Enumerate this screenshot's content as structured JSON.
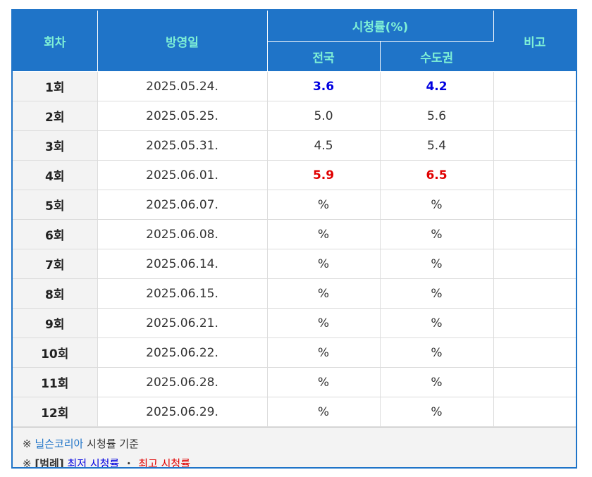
{
  "header": {
    "episode": "회차",
    "air_date": "방영일",
    "rating_group": "시청률(%)",
    "nationwide": "전국",
    "capital": "수도권",
    "note": "비고"
  },
  "rows": [
    {
      "episode": "1회",
      "date": "2025.05.24.",
      "nationwide": "3.6",
      "capital": "4.2",
      "nation_style": "low",
      "capital_style": "low",
      "note": ""
    },
    {
      "episode": "2회",
      "date": "2025.05.25.",
      "nationwide": "5.0",
      "capital": "5.6",
      "nation_style": "",
      "capital_style": "",
      "note": ""
    },
    {
      "episode": "3회",
      "date": "2025.05.31.",
      "nationwide": "4.5",
      "capital": "5.4",
      "nation_style": "",
      "capital_style": "",
      "note": ""
    },
    {
      "episode": "4회",
      "date": "2025.06.01.",
      "nationwide": "5.9",
      "capital": "6.5",
      "nation_style": "high",
      "capital_style": "high",
      "note": ""
    },
    {
      "episode": "5회",
      "date": "2025.06.07.",
      "nationwide": "%",
      "capital": "%",
      "nation_style": "",
      "capital_style": "",
      "note": ""
    },
    {
      "episode": "6회",
      "date": "2025.06.08.",
      "nationwide": "%",
      "capital": "%",
      "nation_style": "",
      "capital_style": "",
      "note": ""
    },
    {
      "episode": "7회",
      "date": "2025.06.14.",
      "nationwide": "%",
      "capital": "%",
      "nation_style": "",
      "capital_style": "",
      "note": ""
    },
    {
      "episode": "8회",
      "date": "2025.06.15.",
      "nationwide": "%",
      "capital": "%",
      "nation_style": "",
      "capital_style": "",
      "note": ""
    },
    {
      "episode": "9회",
      "date": "2025.06.21.",
      "nationwide": "%",
      "capital": "%",
      "nation_style": "",
      "capital_style": "",
      "note": ""
    },
    {
      "episode": "10회",
      "date": "2025.06.22.",
      "nationwide": "%",
      "capital": "%",
      "nation_style": "",
      "capital_style": "",
      "note": ""
    },
    {
      "episode": "11회",
      "date": "2025.06.28.",
      "nationwide": "%",
      "capital": "%",
      "nation_style": "",
      "capital_style": "",
      "note": ""
    },
    {
      "episode": "12회",
      "date": "2025.06.29.",
      "nationwide": "%",
      "capital": "%",
      "nation_style": "",
      "capital_style": "",
      "note": ""
    }
  ],
  "footnote": {
    "mark": "※",
    "source_link": "닐슨코리아",
    "source_suffix": " 시청률 기준",
    "legend_label": "[범례]",
    "legend_low": "최저 시청률",
    "legend_sep": "・",
    "legend_high": "최고 시청률"
  },
  "colors": {
    "header_bg": "#1f74c8",
    "header_text": "#7ff0d6",
    "low": "#0000e0",
    "high": "#e00000"
  }
}
